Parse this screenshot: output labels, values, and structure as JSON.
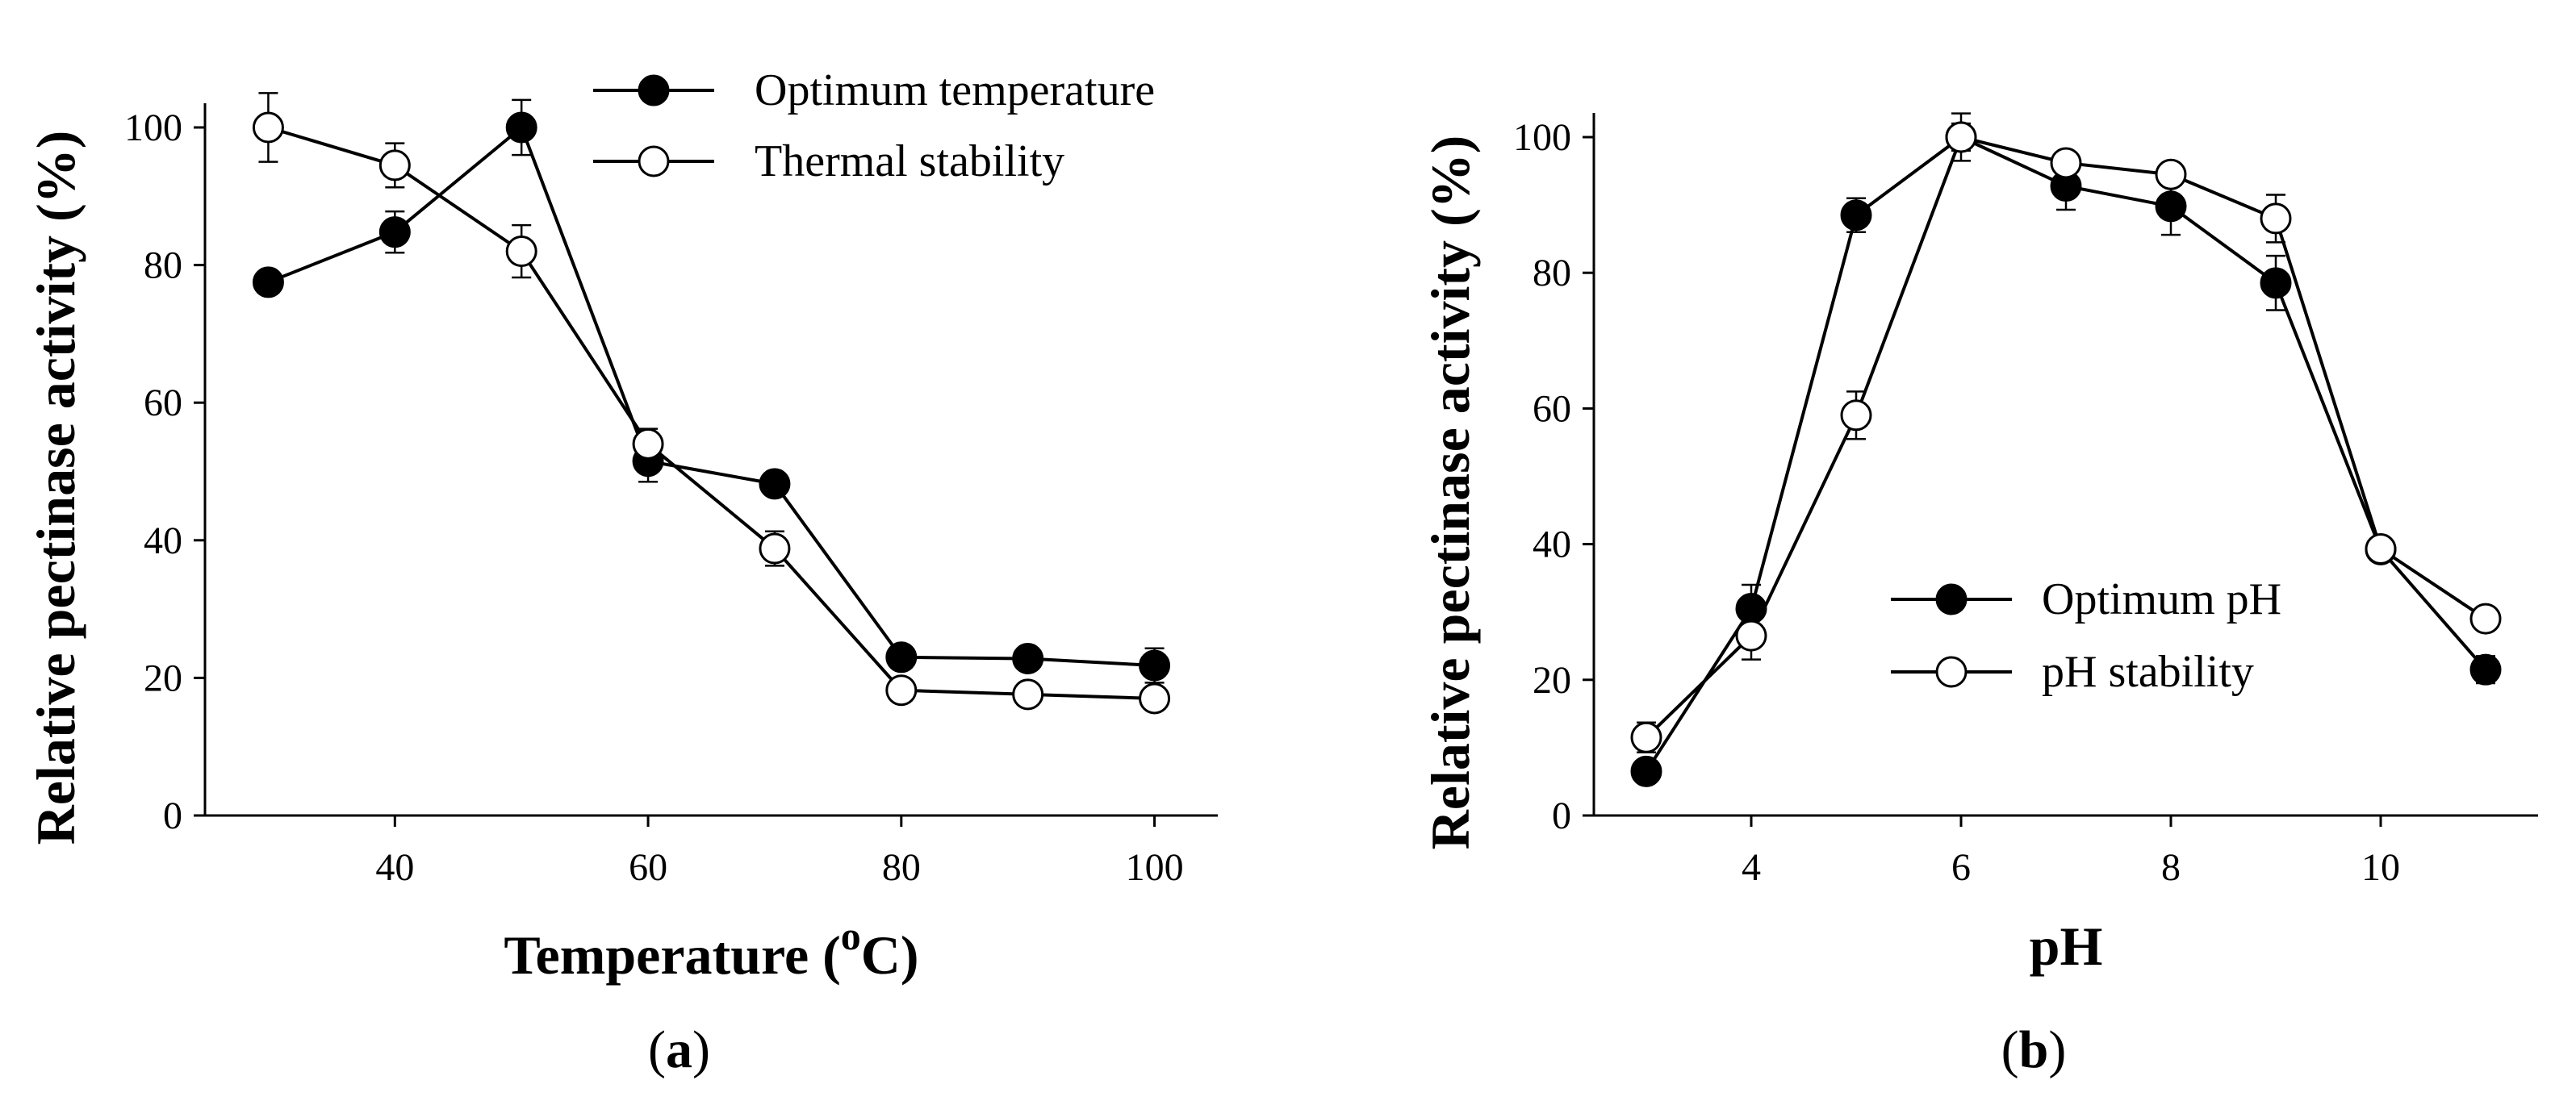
{
  "chart_data": [
    {
      "id": "a",
      "type": "line",
      "panel_label": {
        "open": "(",
        "letter": "a",
        "close": ")"
      },
      "xlabel": {
        "main": "Temperature (",
        "sup": "o",
        "tail": "C)"
      },
      "ylabel": "Relative pectinase activity (%)",
      "xlim": [
        25,
        105
      ],
      "ylim": [
        0,
        100
      ],
      "xticks": [
        40,
        60,
        80,
        100
      ],
      "yticks": [
        0,
        20,
        40,
        60,
        80,
        100
      ],
      "legend_position": "top-right",
      "series": [
        {
          "name": "Optimum temperature",
          "marker": "filled-circle",
          "x": [
            30,
            40,
            50,
            60,
            70,
            80,
            90,
            100
          ],
          "y": [
            77.5,
            84.8,
            100,
            51.5,
            48.2,
            23,
            22.8,
            21.8
          ],
          "err": [
            0,
            3,
            4,
            3,
            1.5,
            1,
            1.2,
            2.5
          ]
        },
        {
          "name": "Thermal stability",
          "marker": "open-circle",
          "x": [
            30,
            40,
            50,
            60,
            70,
            80,
            90,
            100
          ],
          "y": [
            100,
            94.5,
            82,
            54,
            38.8,
            18.2,
            17.6,
            17
          ],
          "err": [
            5,
            3.2,
            3.8,
            2.2,
            2.5,
            1,
            0.8,
            1
          ]
        }
      ]
    },
    {
      "id": "b",
      "type": "line",
      "panel_label": {
        "open": "(",
        "letter": "b",
        "close": ")"
      },
      "xlabel": {
        "main": "pH",
        "sup": "",
        "tail": ""
      },
      "ylabel": "Relative pectinase activity (%)",
      "xlim": [
        2.5,
        11.5
      ],
      "ylim": [
        0,
        100
      ],
      "xticks": [
        4,
        6,
        8,
        10
      ],
      "yticks": [
        0,
        20,
        40,
        60,
        80,
        100
      ],
      "legend_position": "lower-right",
      "series": [
        {
          "name": "Optimum pH",
          "marker": "filled-circle",
          "x": [
            3,
            4,
            5,
            6,
            7,
            8,
            9,
            10,
            11
          ],
          "y": [
            6.5,
            30.5,
            88.5,
            100,
            92.8,
            89.8,
            78.5,
            39.2,
            21.5
          ],
          "err": [
            0,
            3.5,
            2.5,
            2,
            3.5,
            4.2,
            4,
            1,
            2
          ]
        },
        {
          "name": "pH stability",
          "marker": "open-circle",
          "x": [
            3,
            4,
            5,
            6,
            7,
            8,
            9,
            10,
            11
          ],
          "y": [
            11.5,
            26.5,
            59,
            100,
            96.2,
            94.5,
            88,
            39.3,
            29
          ],
          "err": [
            2.2,
            3.5,
            3.5,
            3.5,
            0,
            0,
            3.5,
            0,
            0
          ]
        }
      ]
    }
  ]
}
